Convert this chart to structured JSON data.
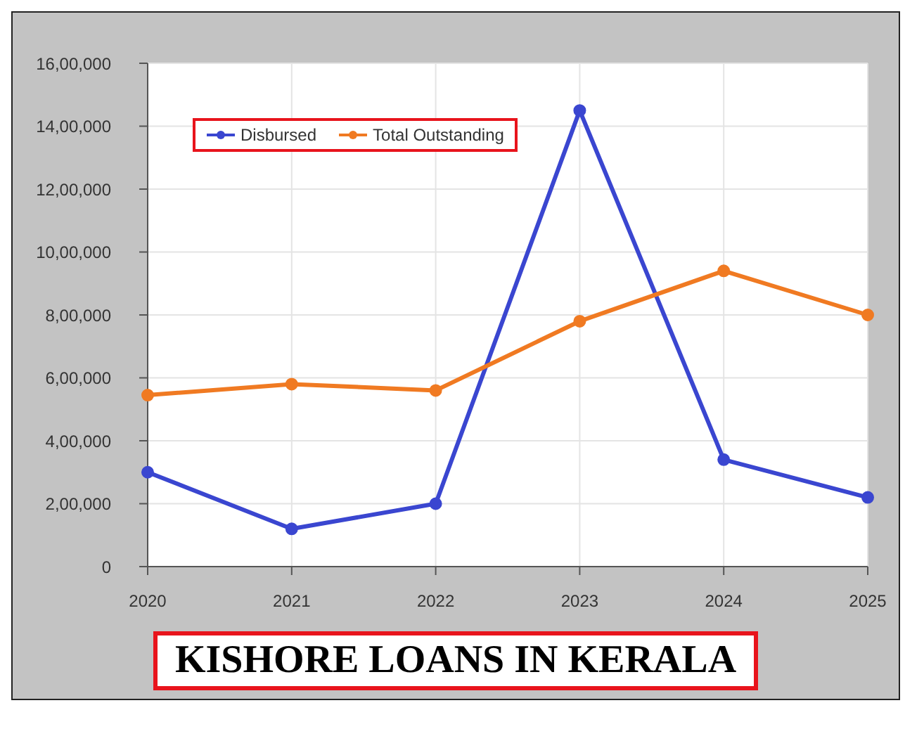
{
  "chart_data": {
    "type": "line",
    "title": "KISHORE LOANS IN KERALA",
    "categories": [
      "2020",
      "2021",
      "2022",
      "2023",
      "2024",
      "2025"
    ],
    "series": [
      {
        "name": "Disbursed",
        "color": "#3a46d0",
        "values": [
          300000,
          120000,
          200000,
          1450000,
          340000,
          220000
        ]
      },
      {
        "name": "Total Outstanding",
        "color": "#f07a22",
        "values": [
          545000,
          580000,
          560000,
          780000,
          940000,
          800000
        ]
      }
    ],
    "ylim": [
      0,
      1600000
    ],
    "yticks": [
      0,
      {
        "value": 200000,
        "label": "2,00,000"
      },
      {
        "value": 400000,
        "label": "4,00,000"
      },
      {
        "value": 600000,
        "label": "6,00,000"
      },
      {
        "value": 800000,
        "label": "8,00,000"
      },
      {
        "value": 1000000,
        "label": "10,00,000"
      },
      {
        "value": 1200000,
        "label": "12,00,000"
      },
      {
        "value": 1400000,
        "label": "14,00,000"
      },
      {
        "value": 1600000,
        "label": "16,00,000"
      }
    ],
    "grid": true,
    "legend": "top left",
    "marker": "circle",
    "line_style": "solid"
  }
}
